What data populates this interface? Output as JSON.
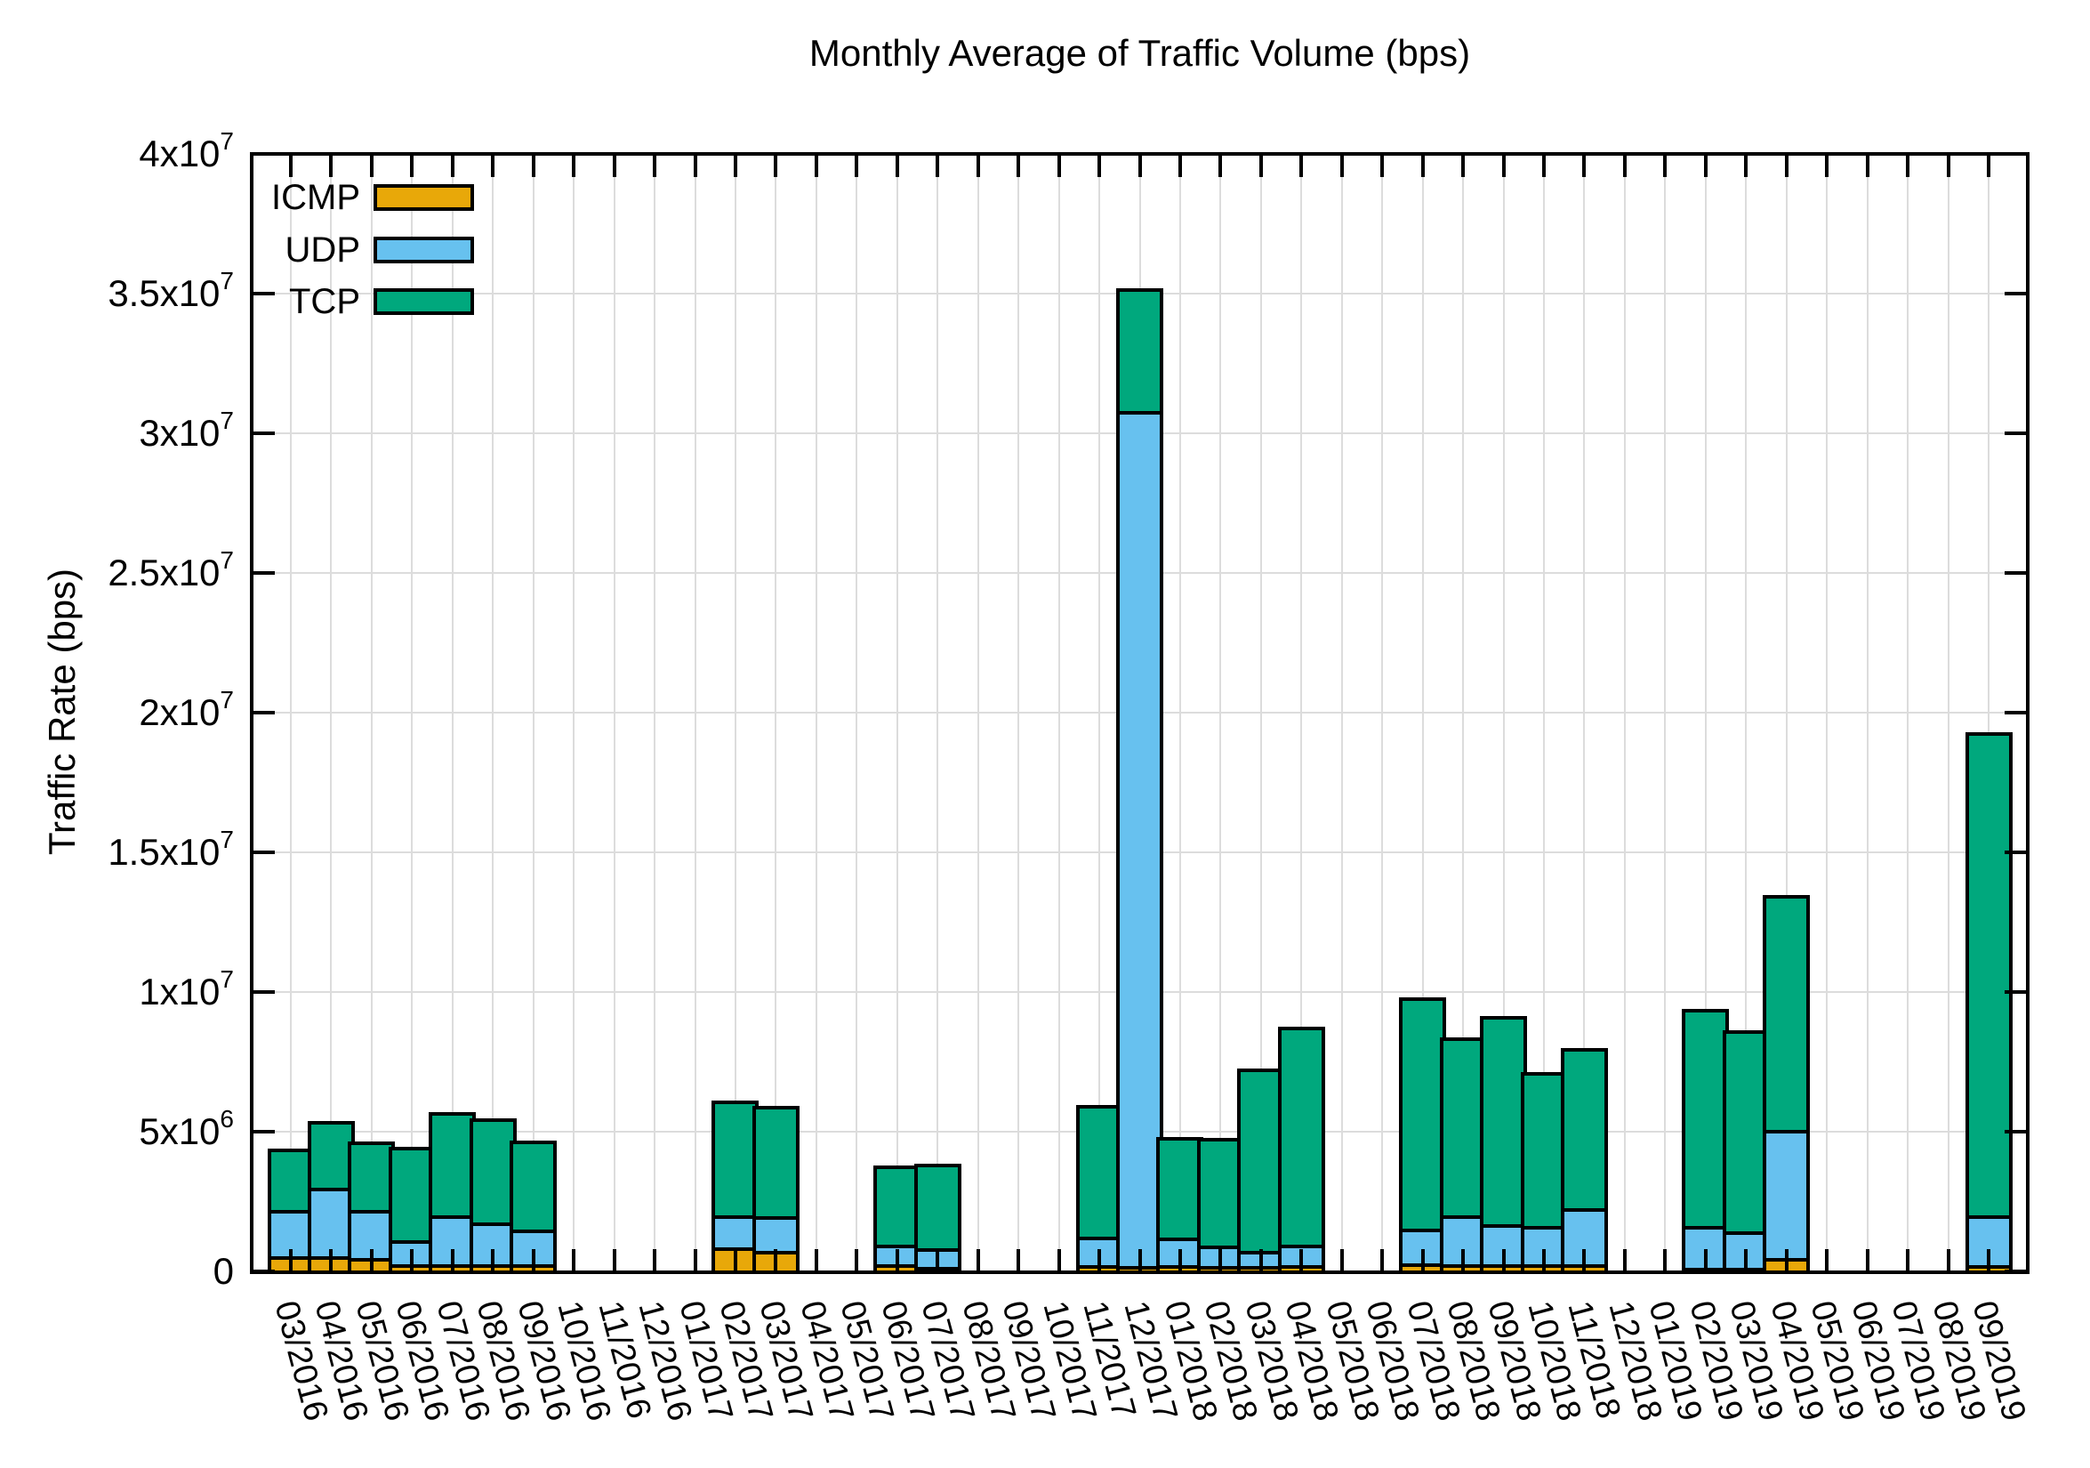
{
  "title": "Monthly Average of Traffic Volume (bps)",
  "colors": {
    "icmp": "#E8A809",
    "udp": "#67C1EF",
    "tcp": "#00A87D",
    "grid": "#DCDCDC",
    "axis": "#000000",
    "background": "#FFFFFF"
  },
  "chart_data": {
    "type": "bar",
    "stacked": true,
    "title": "Monthly Average of Traffic Volume (bps)",
    "xlabel": "",
    "ylabel": "Traffic Rate (bps)",
    "ylim": [
      0,
      40000000
    ],
    "grid": true,
    "legend_position": "top-left",
    "ytick_labels": [
      "0",
      "5x10^6",
      "1x10^7",
      "1.5x10^7",
      "2x10^7",
      "2.5x10^7",
      "3x10^7",
      "3.5x10^7",
      "4x10^7"
    ],
    "ytick_values": [
      0,
      5000000,
      10000000,
      15000000,
      20000000,
      25000000,
      30000000,
      35000000,
      40000000
    ],
    "categories": [
      "03/2016",
      "04/2016",
      "05/2016",
      "06/2016",
      "07/2016",
      "08/2016",
      "09/2016",
      "10/2016",
      "11/2016",
      "12/2016",
      "01/2017",
      "02/2017",
      "03/2017",
      "04/2017",
      "05/2017",
      "06/2017",
      "07/2017",
      "08/2017",
      "09/2017",
      "10/2017",
      "11/2017",
      "12/2017",
      "01/2018",
      "02/2018",
      "03/2018",
      "04/2018",
      "05/2018",
      "06/2018",
      "07/2018",
      "08/2018",
      "09/2018",
      "10/2018",
      "11/2018",
      "12/2018",
      "01/2019",
      "02/2019",
      "03/2019",
      "04/2019",
      "05/2019",
      "06/2019",
      "07/2019",
      "08/2019",
      "09/2019"
    ],
    "series": [
      {
        "name": "ICMP",
        "color": "#E8A809",
        "values": [
          480000,
          480000,
          410000,
          190000,
          190000,
          190000,
          190000,
          0,
          0,
          0,
          0,
          800000,
          670000,
          0,
          0,
          190000,
          100000,
          0,
          0,
          0,
          150000,
          130000,
          150000,
          130000,
          130000,
          160000,
          0,
          0,
          210000,
          200000,
          200000,
          200000,
          200000,
          0,
          0,
          50000,
          50000,
          400000,
          0,
          0,
          0,
          0,
          150000
        ]
      },
      {
        "name": "UDP",
        "color": "#67C1EF",
        "values": [
          1650000,
          2450000,
          1720000,
          860000,
          1750000,
          1500000,
          1240000,
          0,
          0,
          0,
          0,
          1140000,
          1240000,
          0,
          0,
          700000,
          650000,
          0,
          0,
          0,
          1030000,
          30600000,
          1000000,
          730000,
          540000,
          730000,
          0,
          0,
          1250000,
          1740000,
          1420000,
          1360000,
          2000000,
          0,
          0,
          1510000,
          1320000,
          4600000,
          0,
          0,
          0,
          0,
          1800000
        ]
      },
      {
        "name": "TCP",
        "color": "#00A87D",
        "values": [
          2200000,
          2380000,
          2460000,
          3350000,
          3710000,
          3720000,
          3190000,
          0,
          0,
          0,
          0,
          4110000,
          3950000,
          0,
          0,
          2830000,
          3030000,
          0,
          0,
          0,
          4710000,
          4400000,
          3590000,
          3850000,
          6530000,
          7810000,
          0,
          0,
          8290000,
          6370000,
          7450000,
          5510000,
          5730000,
          0,
          0,
          7770000,
          7200000,
          8400000,
          0,
          0,
          0,
          0,
          17300000
        ]
      }
    ]
  }
}
